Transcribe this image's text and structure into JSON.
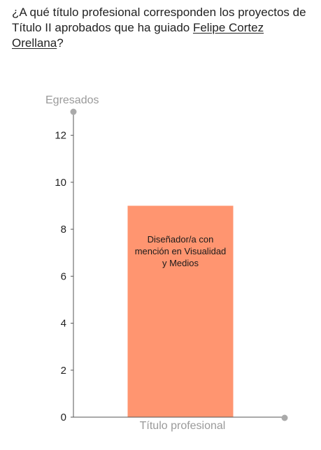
{
  "question": {
    "prefix": "¿A qué título profesional corresponden los proyectos de Título II aprobados que ha guiado ",
    "guide_name": "Felipe Cortez Orellana",
    "suffix": "?"
  },
  "chart_data": {
    "type": "bar",
    "categories": [
      "Diseñador/a con mención en Visualidad y Medios"
    ],
    "values": [
      9
    ],
    "xlabel": "Título profesional",
    "ylabel": "Egresados",
    "ylim": [
      0,
      13
    ],
    "yticks": [
      0,
      2,
      4,
      6,
      8,
      10,
      12
    ],
    "grid": false,
    "colors": {
      "bar": "#FF9570",
      "axis": "#555555",
      "axis_dot": "#aaaaaa"
    }
  }
}
